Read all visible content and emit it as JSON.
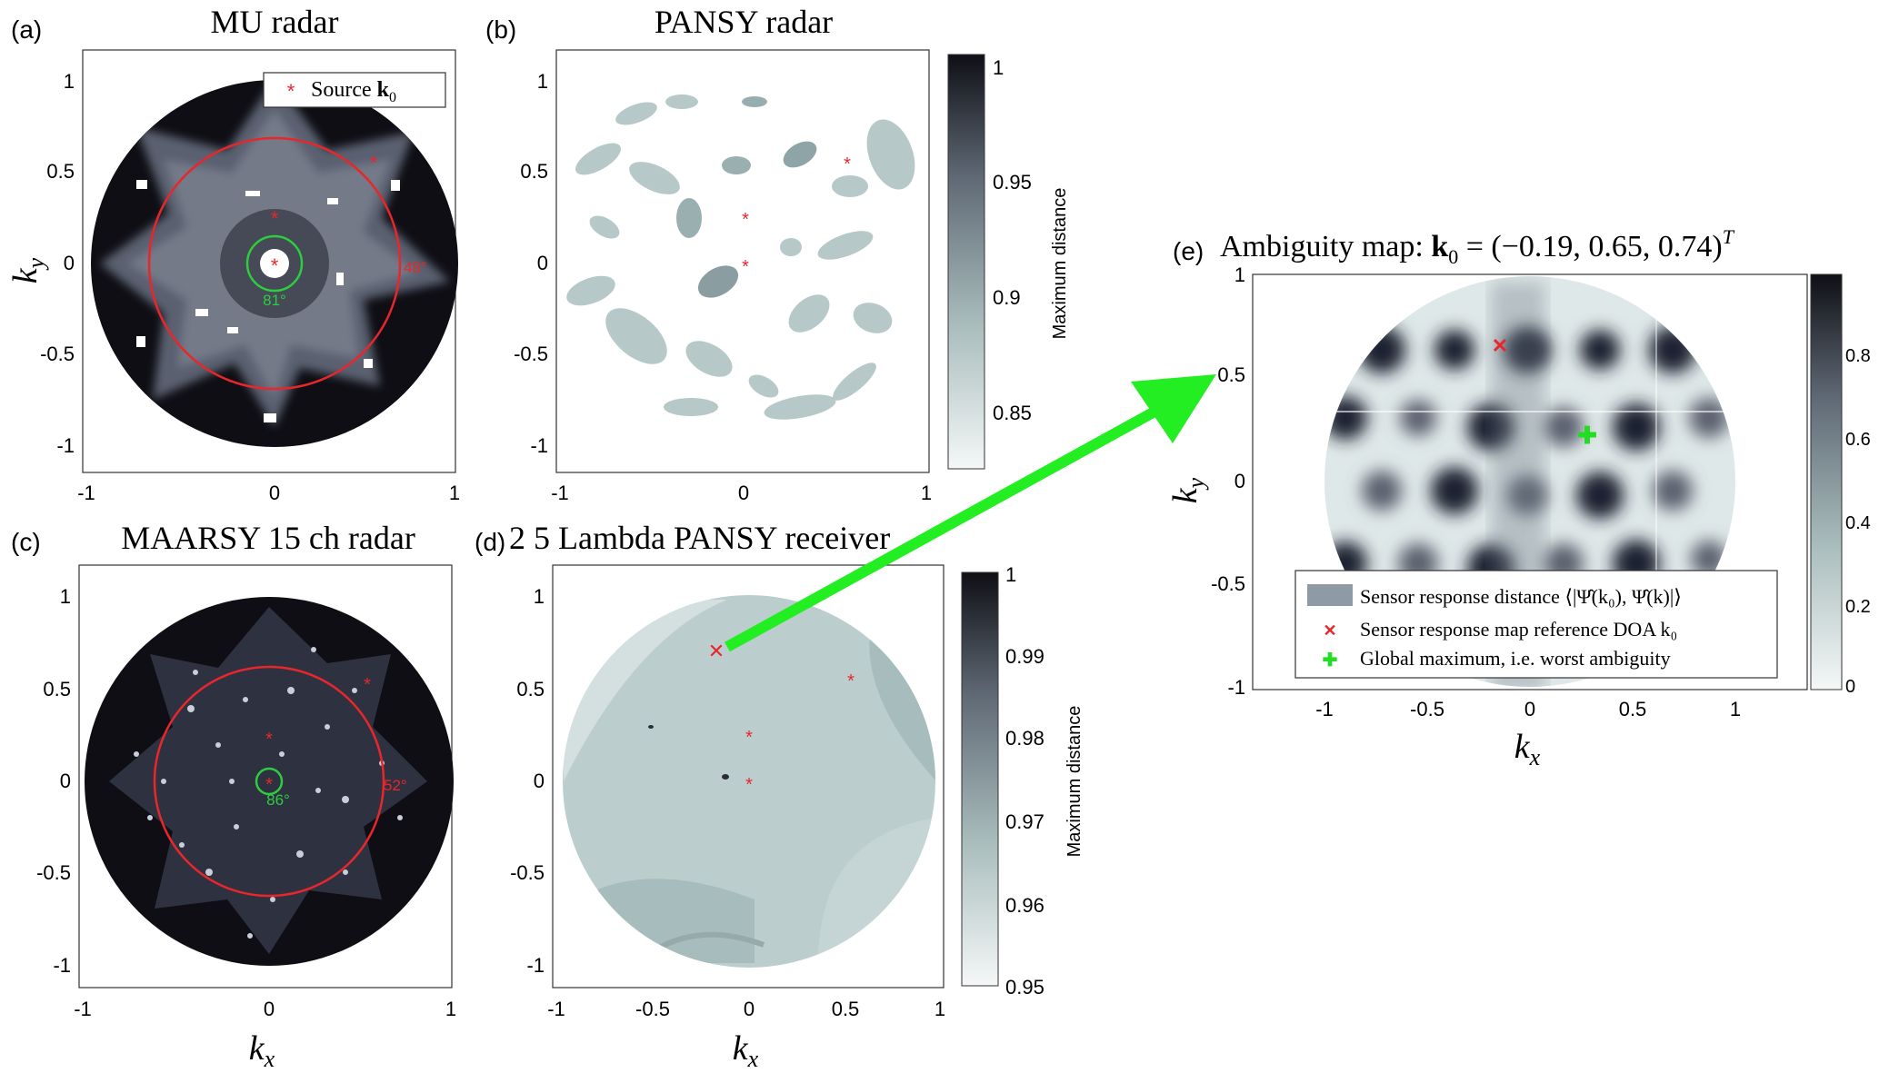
{
  "panels": {
    "a": {
      "label": "(a)",
      "title": "MU radar",
      "legend": "Source",
      "legend_math": "k",
      "legend_sub": "0",
      "angle_outer": "48°",
      "angle_inner": "81°",
      "yticks": [
        "1",
        "0.5",
        "0",
        "-0.5",
        "-1"
      ],
      "xticks": [
        "-1",
        "0",
        "1"
      ],
      "ylabel": "k",
      "ylabel_sub": "y"
    },
    "b": {
      "label": "(b)",
      "title": "PANSY radar",
      "yticks": [
        "1",
        "0.5",
        "0",
        "-0.5",
        "-1"
      ],
      "xticks": [
        "-1",
        "0",
        "1"
      ],
      "colorbar_label": "Maximum distance",
      "colorbar_ticks": [
        "1",
        "0.95",
        "0.9",
        "0.85"
      ]
    },
    "c": {
      "label": "(c)",
      "title": "MAARSY 15 ch radar",
      "angle_outer": "52°",
      "angle_inner": "86°",
      "yticks": [
        "1",
        "0.5",
        "0",
        "-0.5",
        "-1"
      ],
      "xticks": [
        "-1",
        "0",
        "1"
      ],
      "xlabel": "k",
      "xlabel_sub": "x"
    },
    "d": {
      "label": "(d)",
      "title": "2 5 Lambda PANSY receiver",
      "yticks": [
        "1",
        "0.5",
        "0",
        "-0.5",
        "-1"
      ],
      "xticks": [
        "-1",
        "-0.5",
        "0",
        "0.5",
        "1"
      ],
      "xlabel": "k",
      "xlabel_sub": "x",
      "colorbar_label": "Maximum distance",
      "colorbar_ticks": [
        "1",
        "0.99",
        "0.98",
        "0.97",
        "0.96",
        "0.95"
      ]
    },
    "e": {
      "label": "(e)",
      "title": "Ambiguity map:",
      "title_math": "k",
      "title_sub": "0",
      "title_value": " = (−0.19, 0.65, 0.74)",
      "title_sup": "T",
      "yticks": [
        "1",
        "0.5",
        "0",
        "-0.5",
        "-1"
      ],
      "xticks": [
        "-1",
        "-0.5",
        "0",
        "0.5",
        "1"
      ],
      "xlabel": "k",
      "xlabel_sub": "x",
      "ylabel": "k",
      "ylabel_sub": "y",
      "colorbar_ticks": [
        "0.8",
        "0.6",
        "0.4",
        "0.2",
        "0"
      ],
      "legend": [
        "Sensor response distance ⟨|Ψ̂(k₀), Ψ̂(k)|⟩",
        "Sensor response map reference DOA k₀",
        "Global maximum, i.e. worst ambiguity"
      ]
    }
  },
  "colors": {
    "source": "#e8262b",
    "fov_inner": "#2ecc40",
    "arrow": "#22ee22",
    "dark": "#0e0e14",
    "light": "#eef3f3"
  }
}
